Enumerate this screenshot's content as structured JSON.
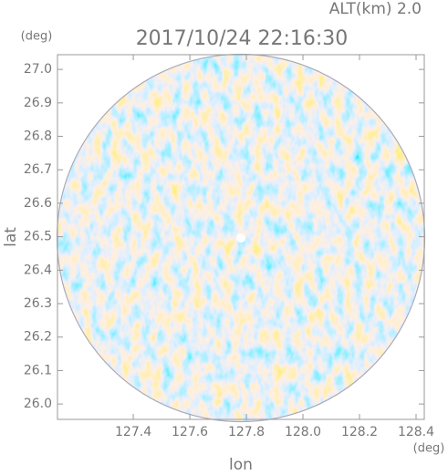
{
  "chart_data": {
    "type": "radar-ppi",
    "subtitle": "ALT(km) 2.0",
    "title": "2017/10/24 22:16:30",
    "y_unit": "(deg)",
    "x_unit": "(deg)",
    "y_label": "lat",
    "x_label": "lon",
    "xlim": [
      127.132,
      128.429
    ],
    "ylim": [
      25.954,
      27.044
    ],
    "xticks": [
      127.4,
      127.6,
      127.8,
      {
        "value": 128.0,
        "label": "128.0"
      },
      128.2,
      128.4
    ],
    "yticks": [
      {
        "value": 26.0,
        "label": "26.0"
      },
      26.1,
      26.2,
      26.3,
      26.4,
      26.5,
      26.6,
      26.7,
      26.8,
      26.9,
      {
        "value": 27.0,
        "label": "27.0"
      }
    ]
  }
}
